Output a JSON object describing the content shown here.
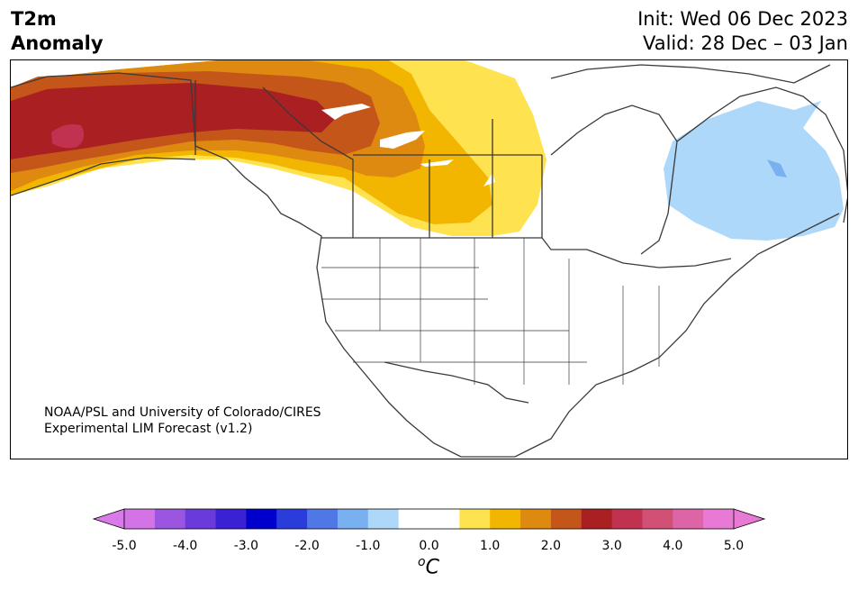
{
  "header": {
    "variable": "T2m",
    "field": "Anomaly",
    "init": "Init: Wed 06 Dec 2023",
    "valid": "Valid: 28 Dec – 03 Jan"
  },
  "credit": {
    "line1": "NOAA/PSL and University of Colorado/CIRES",
    "line2": "Experimental LIM Forecast (v1.2)"
  },
  "colorbar": {
    "unit": "C",
    "unit_superscript": "o",
    "ticks": [
      "-5.0",
      "-4.0",
      "-3.0",
      "-2.0",
      "-1.0",
      "0.0",
      "1.0",
      "2.0",
      "3.0",
      "4.0",
      "5.0"
    ],
    "under_color": "#d97ae8",
    "over_color": "#e87ad6",
    "colors": [
      "#d473e6",
      "#9b55e0",
      "#6b3adb",
      "#3a22d4",
      "#0000cc",
      "#2a3ddb",
      "#4f77e6",
      "#78b0f0",
      "#aed8fa",
      "#ffffff",
      "#ffffff",
      "#ffe24f",
      "#f2b600",
      "#de8a10",
      "#c5561a",
      "#a91f22",
      "#c03250",
      "#d25075",
      "#dd64a6",
      "#e87ad6"
    ]
  },
  "map": {
    "region": "North America",
    "anomaly_areas": [
      {
        "name": "Alaska / Yukon warm core",
        "level": "+3.0 to +3.5",
        "color": "#c03250"
      },
      {
        "name": "Alaska / NW Canada",
        "level": "+2.5 to +3.0",
        "color": "#a91f22"
      },
      {
        "name": "Western Canada",
        "level": "+2.0 to +2.5",
        "color": "#c5561a"
      },
      {
        "name": "Western Canada",
        "level": "+1.5 to +2.0",
        "color": "#de8a10"
      },
      {
        "name": "Canadian Prairies",
        "level": "+1.0 to +1.5",
        "color": "#f2b600"
      },
      {
        "name": "Manitoba / Ontario",
        "level": "+0.5 to +1.0",
        "color": "#ffe24f"
      },
      {
        "name": "Quebec / Labrador",
        "level": "-1.0 to -0.5",
        "color": "#aed8fa"
      },
      {
        "name": "Labrador coast",
        "level": "-1.5 to -1.0",
        "color": "#78b0f0"
      }
    ]
  }
}
